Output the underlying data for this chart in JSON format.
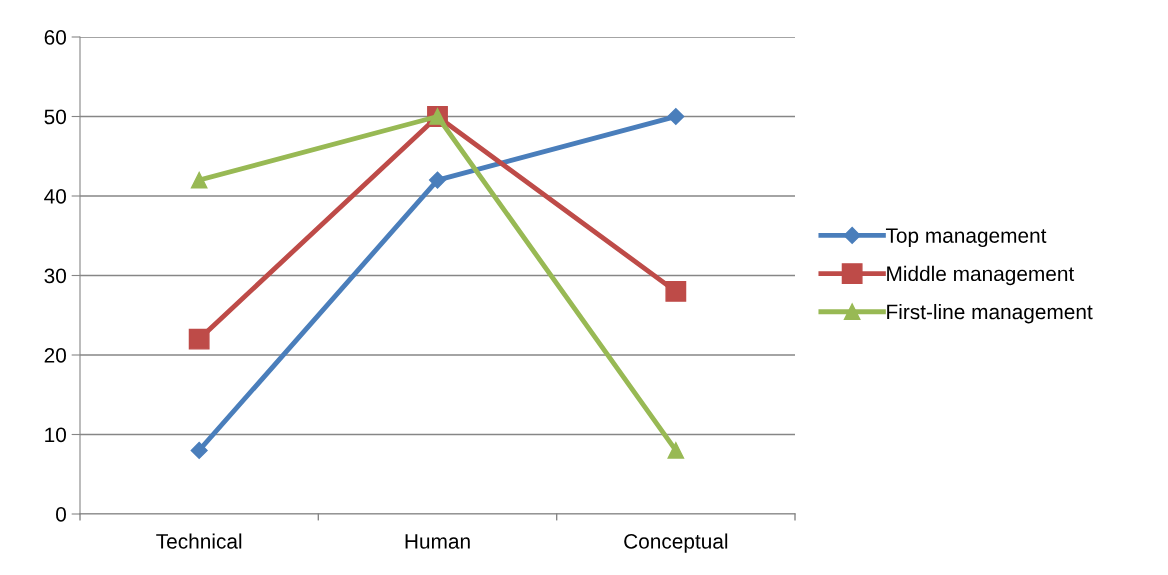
{
  "chart_data": {
    "type": "line",
    "categories": [
      "Technical",
      "Human",
      "Conceptual"
    ],
    "series": [
      {
        "name": "Top management",
        "color": "#4a7ebb",
        "marker": "diamond",
        "values": [
          8,
          42,
          50
        ]
      },
      {
        "name": "Middle management",
        "color": "#be4b48",
        "marker": "square",
        "values": [
          22,
          50,
          28
        ]
      },
      {
        "name": "First-line management",
        "color": "#98b954",
        "marker": "triangle",
        "values": [
          42,
          50,
          8
        ]
      }
    ],
    "ylim": [
      0,
      60
    ],
    "yticks": [
      0,
      10,
      20,
      30,
      40,
      50,
      60
    ],
    "grid": "y",
    "legend": "right",
    "line_style": "solid"
  }
}
